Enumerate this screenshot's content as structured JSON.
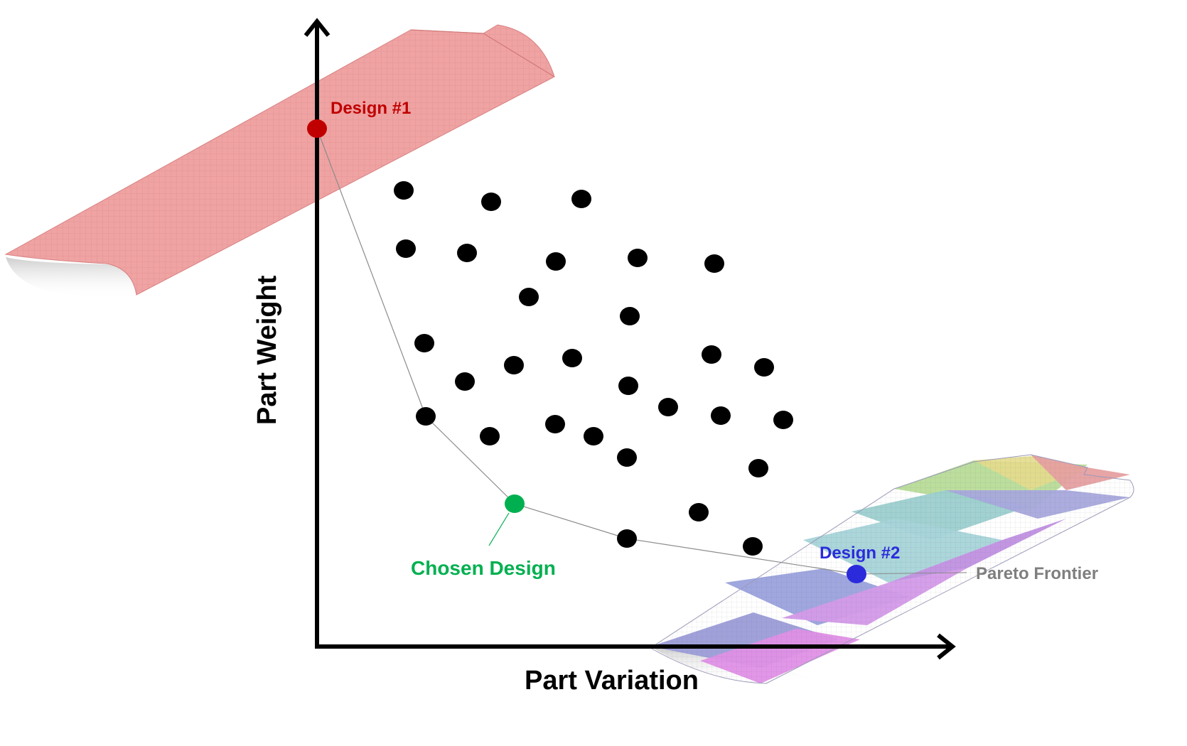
{
  "labels": {
    "y_axis": "Part Weight",
    "x_axis": "Part Variation",
    "design1": "Design #1",
    "design2": "Design #2",
    "chosen": "Chosen Design",
    "pareto": "Pareto Frontier"
  },
  "colors": {
    "design1": "#c00000",
    "design2": "#2b2bdc",
    "chosen": "#00b050",
    "pareto_label": "#7f7f7f",
    "frontier_line": "#8c8c8c",
    "dots": "#000000",
    "axes": "#000000",
    "wing_red": "#eea0a0",
    "wing_multi": [
      "#b8dc98",
      "#e8e090",
      "#90c8d8",
      "#a0a0e0",
      "#d890e8",
      "#e8a0a0"
    ]
  },
  "icons": {
    "design1_wing": "red-wing-panel-icon",
    "design2_wing": "multicolor-wing-panel-icon"
  }
}
